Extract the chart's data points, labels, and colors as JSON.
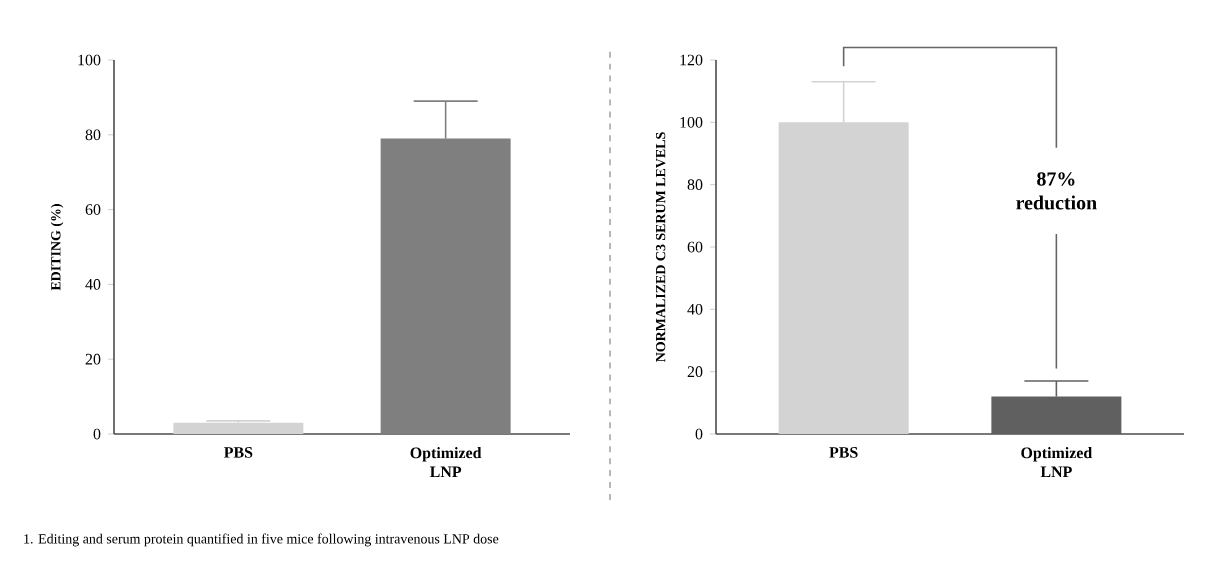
{
  "chart_data": [
    {
      "type": "bar",
      "ylabel": "EDITING (%)",
      "categories": [
        "PBS",
        "Optimized LNP"
      ],
      "values": [
        3,
        79
      ],
      "errors": [
        0.5,
        10
      ],
      "colors": [
        "#d3d3d3",
        "#7f7f7f"
      ],
      "ylim": [
        0,
        100
      ],
      "yticks": [
        0,
        20,
        40,
        60,
        80,
        100
      ],
      "annotations": [
        "1. Editing and serum protein quantified in five mice following intravenous LNP dose"
      ]
    },
    {
      "type": "bar",
      "ylabel": "NORMALIZED C3 SERUM LEVELS",
      "categories": [
        "PBS",
        "Optimized LNP"
      ],
      "values": [
        100,
        12
      ],
      "errors": [
        13,
        5
      ],
      "colors": [
        "#d3d3d3",
        "#606060"
      ],
      "ylim": [
        0,
        120
      ],
      "yticks": [
        0,
        20,
        40,
        60,
        80,
        100,
        120
      ],
      "annotations": [
        "87% reduction"
      ]
    }
  ]
}
